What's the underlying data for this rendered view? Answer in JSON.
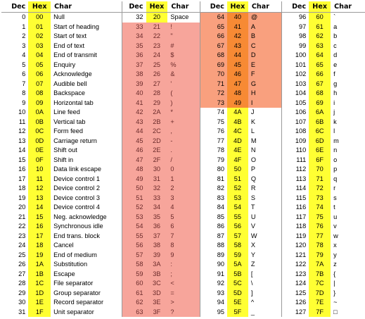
{
  "headers": {
    "dec": "Dec",
    "hex": "Hex",
    "char": "Char"
  },
  "rows": [
    [
      [
        "0",
        "00",
        "Null"
      ],
      [
        "32",
        "20",
        "Space"
      ],
      [
        "64",
        "40",
        "@"
      ],
      [
        "96",
        "60",
        "`"
      ]
    ],
    [
      [
        "1",
        "01",
        "Start of heading"
      ],
      [
        "33",
        "21",
        "!"
      ],
      [
        "65",
        "41",
        "A"
      ],
      [
        "97",
        "61",
        "a"
      ]
    ],
    [
      [
        "2",
        "02",
        "Start of text"
      ],
      [
        "34",
        "22",
        "\""
      ],
      [
        "66",
        "42",
        "B"
      ],
      [
        "98",
        "62",
        "b"
      ]
    ],
    [
      [
        "3",
        "03",
        "End of text"
      ],
      [
        "35",
        "23",
        "#"
      ],
      [
        "67",
        "43",
        "C"
      ],
      [
        "99",
        "63",
        "c"
      ]
    ],
    [
      [
        "4",
        "04",
        "End of transmit"
      ],
      [
        "36",
        "24",
        "$"
      ],
      [
        "68",
        "44",
        "D"
      ],
      [
        "100",
        "64",
        "d"
      ]
    ],
    [
      [
        "5",
        "05",
        "Enquiry"
      ],
      [
        "37",
        "25",
        "%"
      ],
      [
        "69",
        "45",
        "E"
      ],
      [
        "101",
        "65",
        "e"
      ]
    ],
    [
      [
        "6",
        "06",
        "Acknowledge"
      ],
      [
        "38",
        "26",
        "&"
      ],
      [
        "70",
        "46",
        "F"
      ],
      [
        "102",
        "66",
        "f"
      ]
    ],
    [
      [
        "7",
        "07",
        "Audible bell"
      ],
      [
        "39",
        "27",
        "'"
      ],
      [
        "71",
        "47",
        "G"
      ],
      [
        "103",
        "67",
        "g"
      ]
    ],
    [
      [
        "8",
        "08",
        "Backspace"
      ],
      [
        "40",
        "28",
        "("
      ],
      [
        "72",
        "48",
        "H"
      ],
      [
        "104",
        "68",
        "h"
      ]
    ],
    [
      [
        "9",
        "09",
        "Horizontal tab"
      ],
      [
        "41",
        "29",
        ")"
      ],
      [
        "73",
        "49",
        "I"
      ],
      [
        "105",
        "69",
        "i"
      ]
    ],
    [
      [
        "10",
        "0A",
        "Line feed"
      ],
      [
        "42",
        "2A",
        "*"
      ],
      [
        "74",
        "4A",
        "J"
      ],
      [
        "106",
        "6A",
        "j"
      ]
    ],
    [
      [
        "11",
        "0B",
        "Vertical tab"
      ],
      [
        "43",
        "2B",
        "+"
      ],
      [
        "75",
        "4B",
        "K"
      ],
      [
        "107",
        "6B",
        "k"
      ]
    ],
    [
      [
        "12",
        "0C",
        "Form feed"
      ],
      [
        "44",
        "2C",
        ","
      ],
      [
        "76",
        "4C",
        "L"
      ],
      [
        "108",
        "6C",
        "l"
      ]
    ],
    [
      [
        "13",
        "0D",
        "Carriage return"
      ],
      [
        "45",
        "2D",
        "-"
      ],
      [
        "77",
        "4D",
        "M"
      ],
      [
        "109",
        "6D",
        "m"
      ]
    ],
    [
      [
        "14",
        "0E",
        "Shift out"
      ],
      [
        "46",
        "2E",
        "."
      ],
      [
        "78",
        "4E",
        "N"
      ],
      [
        "110",
        "6E",
        "n"
      ]
    ],
    [
      [
        "15",
        "0F",
        "Shift in"
      ],
      [
        "47",
        "2F",
        "/"
      ],
      [
        "79",
        "4F",
        "O"
      ],
      [
        "111",
        "6F",
        "o"
      ]
    ],
    [
      [
        "16",
        "10",
        "Data link escape"
      ],
      [
        "48",
        "30",
        "0"
      ],
      [
        "80",
        "50",
        "P"
      ],
      [
        "112",
        "70",
        "p"
      ]
    ],
    [
      [
        "17",
        "11",
        "Device control 1"
      ],
      [
        "49",
        "31",
        "1"
      ],
      [
        "81",
        "51",
        "Q"
      ],
      [
        "113",
        "71",
        "q"
      ]
    ],
    [
      [
        "18",
        "12",
        "Device control 2"
      ],
      [
        "50",
        "32",
        "2"
      ],
      [
        "82",
        "52",
        "R"
      ],
      [
        "114",
        "72",
        "r"
      ]
    ],
    [
      [
        "19",
        "13",
        "Device control 3"
      ],
      [
        "51",
        "33",
        "3"
      ],
      [
        "83",
        "53",
        "S"
      ],
      [
        "115",
        "73",
        "s"
      ]
    ],
    [
      [
        "20",
        "14",
        "Device control 4"
      ],
      [
        "52",
        "34",
        "4"
      ],
      [
        "84",
        "54",
        "T"
      ],
      [
        "116",
        "74",
        "t"
      ]
    ],
    [
      [
        "21",
        "15",
        "Neg. acknowledge"
      ],
      [
        "53",
        "35",
        "5"
      ],
      [
        "85",
        "55",
        "U"
      ],
      [
        "117",
        "75",
        "u"
      ]
    ],
    [
      [
        "22",
        "16",
        "Synchronous idle"
      ],
      [
        "54",
        "36",
        "6"
      ],
      [
        "86",
        "56",
        "V"
      ],
      [
        "118",
        "76",
        "v"
      ]
    ],
    [
      [
        "23",
        "17",
        "End trans. block"
      ],
      [
        "55",
        "37",
        "7"
      ],
      [
        "87",
        "57",
        "W"
      ],
      [
        "119",
        "77",
        "w"
      ]
    ],
    [
      [
        "24",
        "18",
        "Cancel"
      ],
      [
        "56",
        "38",
        "8"
      ],
      [
        "88",
        "58",
        "X"
      ],
      [
        "120",
        "78",
        "x"
      ]
    ],
    [
      [
        "25",
        "19",
        "End of medium"
      ],
      [
        "57",
        "39",
        "9"
      ],
      [
        "89",
        "59",
        "Y"
      ],
      [
        "121",
        "79",
        "y"
      ]
    ],
    [
      [
        "26",
        "1A",
        "Substitution"
      ],
      [
        "58",
        "3A",
        ":"
      ],
      [
        "90",
        "5A",
        "Z"
      ],
      [
        "122",
        "7A",
        "z"
      ]
    ],
    [
      [
        "27",
        "1B",
        "Escape"
      ],
      [
        "59",
        "3B",
        ";"
      ],
      [
        "91",
        "5B",
        "["
      ],
      [
        "123",
        "7B",
        "{"
      ]
    ],
    [
      [
        "28",
        "1C",
        "File separator"
      ],
      [
        "60",
        "3C",
        "<"
      ],
      [
        "92",
        "5C",
        "\\"
      ],
      [
        "124",
        "7C",
        "|"
      ]
    ],
    [
      [
        "29",
        "1D",
        "Group separator"
      ],
      [
        "61",
        "3D",
        "="
      ],
      [
        "93",
        "5D",
        "]"
      ],
      [
        "125",
        "7D",
        "}"
      ]
    ],
    [
      [
        "30",
        "1E",
        "Record separator"
      ],
      [
        "62",
        "3E",
        ">"
      ],
      [
        "94",
        "5E",
        "^"
      ],
      [
        "126",
        "7E",
        "~"
      ]
    ],
    [
      [
        "31",
        "1F",
        "Unit separator"
      ],
      [
        "63",
        "3F",
        "?"
      ],
      [
        "95",
        "5F",
        "_"
      ],
      [
        "127",
        "7F",
        "□"
      ]
    ]
  ],
  "colors": {
    "hex_column": "#ffff33",
    "pink_highlight": "#f7a59b",
    "orange_highlight": "#f78a34",
    "orange_light": "#f9a07e"
  }
}
